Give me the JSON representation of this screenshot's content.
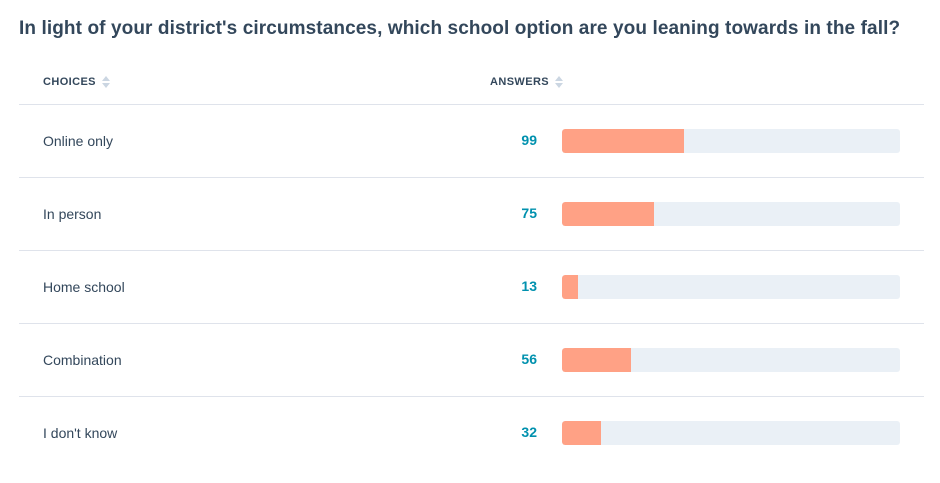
{
  "question": "In light of your district's circumstances, which school option are you leaning towards in the fall?",
  "columns": {
    "choices": "CHOICES",
    "answers": "ANSWERS"
  },
  "colors": {
    "bar_fill": "#ffa185",
    "bar_track": "#eaf0f6",
    "count_text": "#0091ae",
    "text": "#33475b"
  },
  "chart_data": {
    "type": "bar",
    "orientation": "horizontal",
    "title": "In light of your district's circumstances, which school option are you leaning towards in the fall?",
    "categories": [
      "Online only",
      "In person",
      "Home school",
      "Combination",
      "I don't know"
    ],
    "values": [
      99,
      75,
      13,
      56,
      32
    ],
    "scale_max": 275
  },
  "rows": [
    {
      "label": "Online only",
      "count": "99"
    },
    {
      "label": "In person",
      "count": "75"
    },
    {
      "label": "Home school",
      "count": "13"
    },
    {
      "label": "Combination",
      "count": "56"
    },
    {
      "label": "I don't know",
      "count": "32"
    }
  ]
}
